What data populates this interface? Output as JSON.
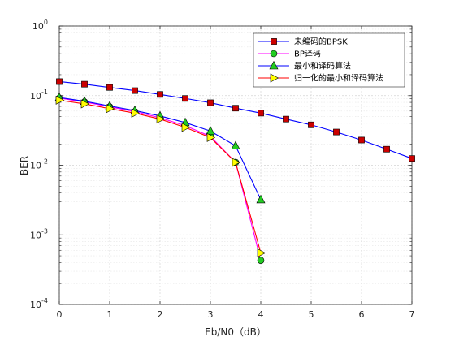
{
  "chart_data": {
    "type": "line",
    "title": "",
    "xlabel": "Eb/N0（dB）",
    "ylabel": "BER",
    "xlim": [
      0,
      7
    ],
    "ylim": [
      0.0001,
      1
    ],
    "yscale": "log",
    "grid": true,
    "legend_position": "top-right",
    "x_ticks": [
      "0",
      "1",
      "2",
      "3",
      "4",
      "5",
      "6",
      "7"
    ],
    "y_ticks": [
      {
        "base": "10",
        "exp": "-4"
      },
      {
        "base": "10",
        "exp": "-3"
      },
      {
        "base": "10",
        "exp": "-2"
      },
      {
        "base": "10",
        "exp": "-1"
      },
      {
        "base": "10",
        "exp": "0"
      }
    ],
    "series": [
      {
        "name": "未编码的BPSK",
        "color": "#0000ff",
        "marker": "square",
        "marker_fill": "#cc0000",
        "x": [
          0,
          0.5,
          1,
          1.5,
          2,
          2.5,
          3,
          3.5,
          4,
          4.5,
          5,
          5.5,
          6,
          6.5,
          7
        ],
        "y": [
          0.159,
          0.146,
          0.131,
          0.118,
          0.104,
          0.091,
          0.079,
          0.066,
          0.056,
          0.046,
          0.038,
          0.03,
          0.023,
          0.017,
          0.0125
        ]
      },
      {
        "name": "BP译码",
        "color": "#ff00ff",
        "marker": "circle",
        "marker_fill": "#22cc22",
        "x": [
          0,
          0.5,
          1,
          1.5,
          2,
          2.5,
          3,
          3.5,
          4
        ],
        "y": [
          0.092,
          0.081,
          0.069,
          0.059,
          0.048,
          0.037,
          0.026,
          0.011,
          0.00043
        ]
      },
      {
        "name": "最小和译码算法",
        "color": "#0000ff",
        "marker": "triangle-up",
        "marker_fill": "#22cc22",
        "x": [
          0,
          0.5,
          1,
          1.5,
          2,
          2.5,
          3,
          3.5,
          4
        ],
        "y": [
          0.094,
          0.083,
          0.071,
          0.061,
          0.051,
          0.041,
          0.031,
          0.019,
          0.0032
        ]
      },
      {
        "name": "归一化的最小和译码算法",
        "color": "#ff0000",
        "marker": "triangle-right",
        "marker_fill": "#ffff00",
        "x": [
          0,
          0.5,
          1,
          1.5,
          2,
          2.5,
          3,
          3.5,
          4
        ],
        "y": [
          0.086,
          0.076,
          0.065,
          0.056,
          0.046,
          0.035,
          0.025,
          0.011,
          0.00055
        ]
      }
    ]
  }
}
